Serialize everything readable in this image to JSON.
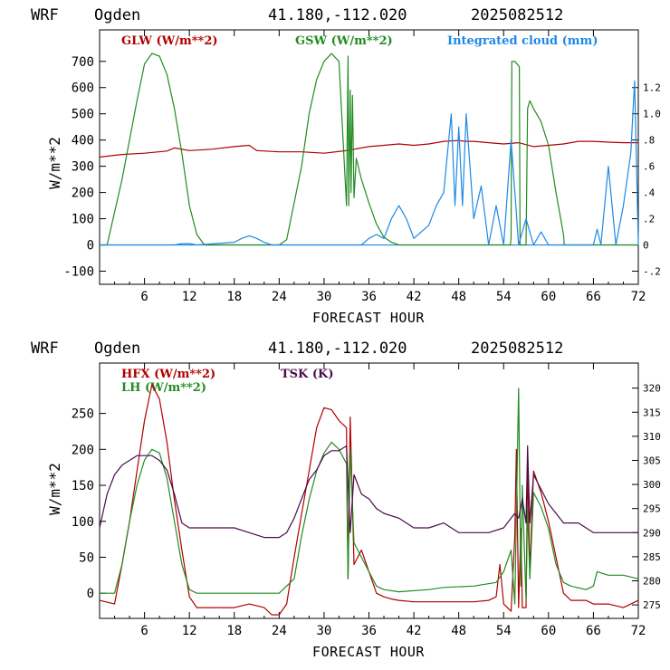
{
  "colors": {
    "red": "#b00000",
    "green": "#228b22",
    "blue": "#1e88e5",
    "purple": "#4b0c4b"
  },
  "chart_data": [
    {
      "type": "line",
      "header": {
        "model": "WRF",
        "site": "Ogden",
        "coords": "41.180,-112.020",
        "run": "2025082512"
      },
      "xlabel": "FORECAST HOUR",
      "ylabel": "W/m**2",
      "xlim": [
        0,
        72
      ],
      "ylim": [
        -150,
        820
      ],
      "x_ticks": [
        "6",
        "12",
        "18",
        "24",
        "30",
        "36",
        "42",
        "48",
        "54",
        "60",
        "66",
        "72"
      ],
      "y_ticks": [
        "-100",
        "0",
        "100",
        "200",
        "300",
        "400",
        "500",
        "600",
        "700"
      ],
      "y2lim": [
        -0.3,
        1.64
      ],
      "y2_ticks": [
        "-.2",
        "0",
        ".2",
        ".4",
        ".6",
        ".8",
        "1.0",
        "1.2"
      ],
      "series": [
        {
          "name": "GLW (W/m**2)",
          "color_key": "red",
          "axis": "left",
          "x": [
            0,
            3,
            6,
            9,
            10,
            12,
            15,
            18,
            20,
            21,
            24,
            27,
            30,
            33,
            36,
            38,
            40,
            42,
            44,
            46,
            48,
            49,
            50,
            52,
            54,
            56,
            58,
            60,
            62,
            64,
            66,
            68,
            70,
            72
          ],
          "y": [
            335,
            345,
            350,
            358,
            370,
            360,
            365,
            375,
            380,
            360,
            355,
            355,
            350,
            360,
            375,
            380,
            385,
            380,
            385,
            395,
            398,
            395,
            395,
            390,
            385,
            390,
            375,
            380,
            385,
            395,
            395,
            392,
            390,
            390
          ]
        },
        {
          "name": "GSW (W/m**2)",
          "color_key": "green",
          "axis": "left",
          "x": [
            0,
            1,
            3,
            5,
            6,
            7,
            8,
            9,
            10,
            11,
            12,
            13,
            14,
            15,
            24,
            25,
            27,
            28,
            29,
            30,
            31,
            32,
            33,
            33.2,
            33.3,
            33.5,
            33.6,
            33.8,
            34,
            34.3,
            35,
            36,
            37,
            38,
            39,
            40,
            41,
            42,
            54.9,
            55,
            55.1,
            55.5,
            56.1,
            56.2,
            57,
            57.1,
            57.2,
            57.5,
            58,
            59,
            60,
            61,
            62,
            62.1,
            72
          ],
          "y": [
            0,
            0,
            250,
            550,
            690,
            730,
            720,
            650,
            520,
            350,
            150,
            40,
            0,
            0,
            0,
            20,
            300,
            500,
            630,
            700,
            730,
            700,
            150,
            720,
            150,
            590,
            200,
            570,
            180,
            330,
            250,
            160,
            80,
            30,
            10,
            0,
            0,
            0,
            0,
            30,
            700,
            700,
            680,
            0,
            0,
            270,
            520,
            550,
            520,
            470,
            380,
            200,
            40,
            0,
            0
          ]
        },
        {
          "name": "Integrated cloud (mm)",
          "color_key": "blue",
          "axis": "right",
          "x": [
            0,
            10,
            11,
            12,
            13,
            18,
            19,
            20,
            21,
            22,
            23,
            35,
            36,
            37,
            38,
            39,
            40,
            41,
            42,
            43,
            44,
            45,
            46,
            47,
            47.5,
            48,
            48.5,
            49,
            50,
            51,
            52,
            53,
            54,
            55,
            56,
            57,
            58,
            59,
            60,
            61,
            62,
            63,
            64,
            65,
            66,
            66.5,
            67,
            68,
            69,
            70,
            71,
            71.5,
            72
          ],
          "y": [
            0,
            0,
            0.01,
            0.01,
            0,
            0.02,
            0.05,
            0.07,
            0.05,
            0.02,
            0,
            0,
            0.05,
            0.08,
            0.05,
            0.2,
            0.3,
            0.2,
            0.05,
            0.1,
            0.15,
            0.3,
            0.4,
            1.0,
            0.3,
            0.9,
            0.3,
            1.0,
            0.2,
            0.45,
            0.0,
            0.3,
            0.0,
            0.8,
            0.0,
            0.2,
            0.0,
            0.1,
            0.0,
            0,
            0,
            0,
            0,
            0,
            0,
            0.12,
            0,
            0.6,
            0,
            0.3,
            0.7,
            1.25,
            0
          ]
        }
      ]
    },
    {
      "type": "line",
      "header": {
        "model": "WRF",
        "site": "Ogden",
        "coords": "41.180,-112.020",
        "run": "2025082512"
      },
      "xlabel": "FORECAST HOUR",
      "ylabel": "W/m**2",
      "xlim": [
        0,
        72
      ],
      "ylim": [
        -35,
        320
      ],
      "x_ticks": [
        "6",
        "12",
        "18",
        "24",
        "30",
        "36",
        "42",
        "48",
        "54",
        "60",
        "66",
        "72"
      ],
      "y_ticks": [
        "0",
        "50",
        "100",
        "150",
        "200",
        "250"
      ],
      "y2lim": [
        272.2,
        325.2
      ],
      "y2_ticks": [
        "275",
        "280",
        "285",
        "290",
        "295",
        "300",
        "305",
        "310",
        "315",
        "320"
      ],
      "series": [
        {
          "name": "HFX (W/m**2)",
          "color_key": "red",
          "axis": "left",
          "x": [
            0,
            2,
            3,
            4,
            5,
            6,
            7,
            8,
            9,
            10,
            11,
            12,
            13,
            18,
            20,
            22,
            23,
            24,
            25,
            26,
            27,
            28,
            29,
            30,
            31,
            32,
            33,
            33.2,
            33.5,
            34,
            35,
            36,
            37,
            38,
            39,
            40,
            42,
            46,
            50,
            52,
            53,
            53.5,
            54,
            55,
            55.5,
            55.7,
            56,
            56.3,
            56.5,
            57,
            57.2,
            57.5,
            58,
            59,
            60,
            61,
            62,
            63,
            65,
            66,
            68,
            70,
            72
          ],
          "y": [
            -10,
            -15,
            40,
            100,
            170,
            240,
            290,
            270,
            210,
            130,
            60,
            -5,
            -20,
            -20,
            -15,
            -20,
            -30,
            -30,
            -15,
            50,
            110,
            170,
            230,
            258,
            255,
            240,
            230,
            20,
            245,
            40,
            60,
            30,
            0,
            -5,
            -8,
            -10,
            -12,
            -12,
            -12,
            -10,
            -5,
            40,
            -15,
            -25,
            80,
            200,
            -20,
            90,
            -20,
            -20,
            180,
            30,
            170,
            140,
            100,
            50,
            0,
            -10,
            -10,
            -15,
            -15,
            -20,
            -10
          ]
        },
        {
          "name": "LH (W/m**2)",
          "color_key": "green",
          "axis": "left",
          "x": [
            0,
            2,
            3,
            4,
            5,
            6,
            7,
            8,
            9,
            10,
            11,
            12,
            13,
            18,
            24,
            26,
            27,
            28,
            29,
            30,
            31,
            32,
            33,
            33.2,
            33.5,
            34,
            35,
            36,
            37,
            38,
            40,
            44,
            46,
            50,
            53,
            54,
            55,
            55.5,
            56,
            56.3,
            56.5,
            57,
            57.2,
            57.5,
            58,
            59,
            60,
            61,
            62,
            63,
            65,
            66,
            66.5,
            68,
            70,
            72
          ],
          "y": [
            0,
            0,
            40,
            100,
            150,
            185,
            200,
            195,
            160,
            100,
            40,
            5,
            0,
            0,
            0,
            20,
            80,
            130,
            170,
            195,
            210,
            200,
            180,
            20,
            200,
            70,
            50,
            30,
            10,
            5,
            2,
            5,
            8,
            10,
            15,
            30,
            60,
            -15,
            285,
            10,
            150,
            -10,
            120,
            20,
            140,
            120,
            90,
            40,
            15,
            10,
            5,
            10,
            30,
            25,
            25,
            20
          ]
        },
        {
          "name": "TSK (K)",
          "color_key": "purple",
          "axis": "right",
          "x": [
            0,
            1,
            2,
            3,
            4,
            5,
            6,
            7,
            8,
            9,
            10,
            11,
            12,
            13,
            18,
            20,
            22,
            24,
            25,
            26,
            27,
            28,
            29,
            30,
            31,
            32,
            33,
            33.5,
            34,
            35,
            36,
            37,
            38,
            40,
            42,
            44,
            46,
            48,
            50,
            52,
            54,
            55,
            55.5,
            56,
            56.5,
            57,
            57.2,
            57.5,
            58,
            59,
            60,
            61,
            62,
            63,
            64,
            65,
            66,
            68,
            70,
            72
          ],
          "y": [
            291,
            298,
            302,
            304,
            305,
            306,
            306,
            306,
            305,
            303,
            298,
            292,
            291,
            291,
            291,
            290,
            289,
            289,
            290,
            293,
            297,
            301,
            303,
            306,
            307,
            307,
            308,
            290,
            302,
            298,
            297,
            295,
            294,
            293,
            291,
            291,
            292,
            290,
            290,
            290,
            291,
            293,
            294,
            293,
            297,
            292,
            308,
            292,
            302,
            299,
            296,
            294,
            292,
            292,
            292,
            291,
            290,
            290,
            290,
            290
          ]
        }
      ]
    }
  ]
}
